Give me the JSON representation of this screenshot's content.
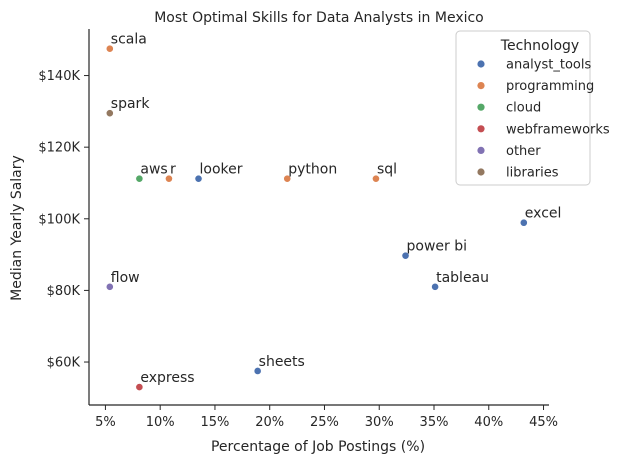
{
  "chart_data": {
    "type": "scatter",
    "title": "Most Optimal Skills for Data Analysts in Mexico",
    "xlabel": "Percentage of Job Postings (%)",
    "ylabel": "Median Yearly Salary",
    "xlim": [
      3.5,
      45.5
    ],
    "ylim": [
      48000,
      153000
    ],
    "x_ticks": [
      5,
      10,
      15,
      20,
      25,
      30,
      35,
      40,
      45
    ],
    "x_tick_labels": [
      "5%",
      "10%",
      "15%",
      "20%",
      "25%",
      "30%",
      "35%",
      "40%",
      "45%"
    ],
    "y_ticks": [
      60000,
      80000,
      100000,
      120000,
      140000
    ],
    "y_tick_labels": [
      "$60K",
      "$80K",
      "$100K",
      "$120K",
      "$140K"
    ],
    "grid": false,
    "legend": {
      "title": "Technology",
      "position": "top-right",
      "entries": [
        {
          "name": "analyst_tools",
          "color": "#4c72b0"
        },
        {
          "name": "programming",
          "color": "#dd8452"
        },
        {
          "name": "cloud",
          "color": "#55a868"
        },
        {
          "name": "webframeworks",
          "color": "#c44e52"
        },
        {
          "name": "other",
          "color": "#8172b3"
        },
        {
          "name": "libraries",
          "color": "#937860"
        }
      ]
    },
    "points": [
      {
        "label": "scala",
        "x": 5.4,
        "y": 147500,
        "category": "programming"
      },
      {
        "label": "spark",
        "x": 5.4,
        "y": 129500,
        "category": "libraries"
      },
      {
        "label": "aws",
        "x": 8.1,
        "y": 111200,
        "category": "cloud"
      },
      {
        "label": "r",
        "x": 10.8,
        "y": 111200,
        "category": "programming"
      },
      {
        "label": "looker",
        "x": 13.5,
        "y": 111200,
        "category": "analyst_tools"
      },
      {
        "label": "python",
        "x": 21.6,
        "y": 111200,
        "category": "programming"
      },
      {
        "label": "sql",
        "x": 29.7,
        "y": 111200,
        "category": "programming"
      },
      {
        "label": "excel",
        "x": 43.2,
        "y": 98900,
        "category": "analyst_tools"
      },
      {
        "label": "power bi",
        "x": 32.4,
        "y": 89700,
        "category": "analyst_tools"
      },
      {
        "label": "tableau",
        "x": 35.1,
        "y": 81000,
        "category": "analyst_tools"
      },
      {
        "label": "flow",
        "x": 5.4,
        "y": 81000,
        "category": "other"
      },
      {
        "label": "sheets",
        "x": 18.9,
        "y": 57500,
        "category": "analyst_tools"
      },
      {
        "label": "express",
        "x": 8.1,
        "y": 53000,
        "category": "webframeworks"
      }
    ]
  }
}
